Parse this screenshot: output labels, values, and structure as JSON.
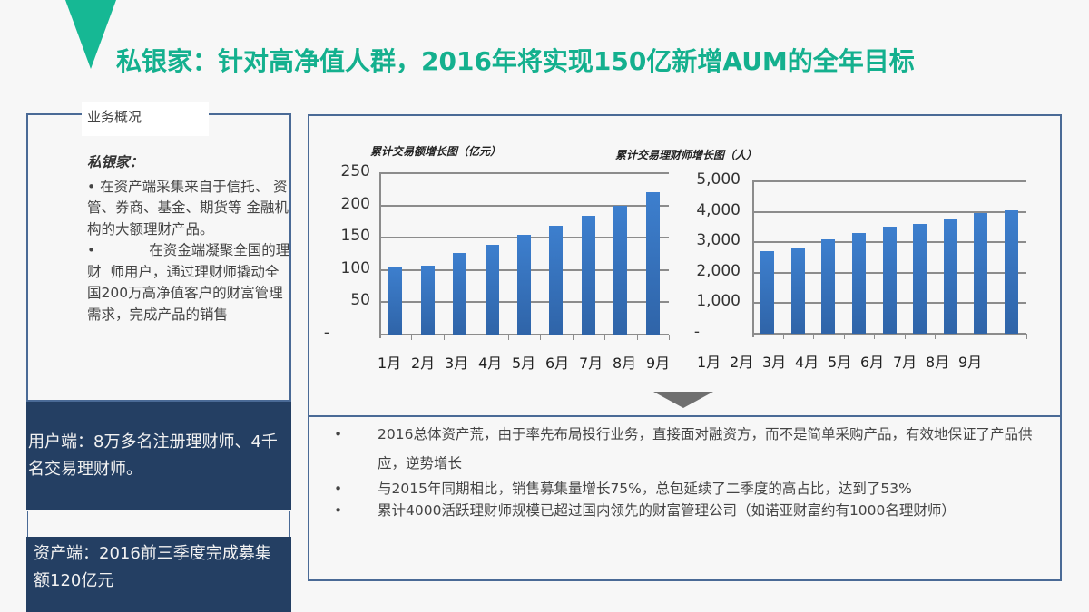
{
  "header": {
    "title": "私银家：针对高净值人群，2016年将实现150亿新增AUM的全年目标",
    "accent_color": "#16b894"
  },
  "left_panel": {
    "label": "业务概况",
    "subtitle": "私银家：",
    "bullets": [
      "• 在资产端采集来自于信托、 资管、券商、基金、期货等  金融机构的大额理财产品。",
      "•            在资金端凝聚全国的理财  师用户，通过理财师撬动全  国200万高净值客户的财富管理需求，完成产品的销售"
    ],
    "user_side": "用户端：8万多名注册理财师、4千名交易理财师。",
    "asset_side": "资产端：2016前三季度完成募集额120亿元",
    "navy_color": "#243f63"
  },
  "charts": {
    "left_title": "累计交易额增长图（亿元）",
    "right_title": "累计交易理财师增长图（人）"
  },
  "chart_data": [
    {
      "type": "bar",
      "title": "累计交易额增长图（亿元）",
      "categories": [
        "1月",
        "2月",
        "3月",
        "4月",
        "5月",
        "6月",
        "7月",
        "8月",
        "9月"
      ],
      "values": [
        105,
        107,
        127,
        139,
        154,
        169,
        184,
        200,
        221
      ],
      "ytick_labels": [
        "-",
        "50",
        "100",
        "150",
        "200",
        "250"
      ],
      "ylim": [
        0,
        250
      ],
      "xlabel": "",
      "ylabel": "",
      "grid": true,
      "bar_color": "#3573c0"
    },
    {
      "type": "bar",
      "title": "累计交易理财师增长图（人）",
      "categories": [
        "1月",
        "2月",
        "3月",
        "4月",
        "5月",
        "6月",
        "7月",
        "8月",
        "9月"
      ],
      "values": [
        2700,
        2800,
        3100,
        3300,
        3500,
        3600,
        3750,
        3950,
        4050
      ],
      "ytick_labels": [
        "-",
        "1,000",
        "2,000",
        "3,000",
        "4,000",
        "5,000"
      ],
      "ylim": [
        0,
        5000
      ],
      "xlabel": "",
      "ylabel": "",
      "grid": true,
      "bar_color": "#3573c0"
    }
  ],
  "summary": {
    "bullet_char": "•",
    "items": [
      "2016总体资产荒，由于率先布局投行业务，直接面对融资方，而不是简单采购产品，有效地保证了产品供应，逆势增长",
      "与2015年同期相比，销售募集量增长75%，总包延续了二季度的高占比，达到了53%",
      "累计4000活跃理财师规模已超过国内领先的财富管理公司（如诺亚财富约有1000名理财师）"
    ]
  }
}
